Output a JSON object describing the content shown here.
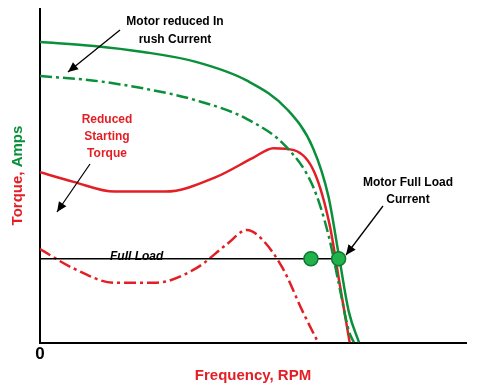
{
  "chart_data": {
    "type": "line",
    "x_label": "Frequency, RPM",
    "y_label": "Torque, Amps",
    "xlim": [
      0,
      100
    ],
    "ylim": [
      0,
      100
    ],
    "xticks": [
      0
    ],
    "yticks": [],
    "tick_labels": "x",
    "grid": false,
    "series": [
      {
        "color": "#22b14c",
        "marker": "circle",
        "line_style": "none",
        "x": [
          63.6,
          70.1
        ],
        "values": [
          25.1,
          25.1
        ]
      },
      {
        "color": "#000000",
        "marker": "none",
        "line_style": "solid",
        "x": [
          0,
          70.1
        ],
        "values": [
          25.1,
          25.1
        ]
      },
      {
        "color": "#0a8f3a",
        "marker": "none",
        "line_style": "solid",
        "x": [
          0,
          12.7,
          24.2,
          36.4,
          48.6,
          58.1,
          64.1,
          67.7,
          70.1,
          72.5,
          74.9
        ],
        "values": [
          90,
          88.8,
          87.0,
          84.1,
          78.4,
          69.7,
          58.2,
          43.8,
          26.5,
          9.2,
          0
        ]
      },
      {
        "color": "#0a8f3a",
        "marker": "none",
        "line_style": "dashdot",
        "x": [
          0,
          12.7,
          24.2,
          36.4,
          48.6,
          58.1,
          64.1,
          67.7,
          70.1,
          72.5,
          73.7
        ],
        "values": [
          79.8,
          78.4,
          76.1,
          72.6,
          66.9,
          58.2,
          46.7,
          32.3,
          17.9,
          3.5,
          0
        ]
      },
      {
        "color": "#e31e24",
        "marker": "none",
        "line_style": "solid",
        "x": [
          0,
          7.9,
          17.5,
          29.4,
          41.4,
          50.0,
          54.8,
          59.6,
          64.4,
          68.0,
          70.3,
          72.7
        ],
        "values": [
          51.0,
          48.1,
          45.2,
          45.2,
          49.6,
          55.3,
          58.2,
          57.6,
          51.0,
          35.2,
          17.9,
          0
        ]
      },
      {
        "color": "#e31e24",
        "marker": "none",
        "line_style": "dashdot",
        "x": [
          0,
          7.9,
          17.5,
          27.0,
          36.6,
          43.8,
          48.6,
          52.2,
          57.0,
          61.7,
          65.3
        ],
        "values": [
          28.0,
          22.2,
          17.9,
          17.9,
          22.2,
          29.4,
          33.7,
          30.8,
          22.2,
          9.2,
          0
        ]
      }
    ],
    "annotations": [
      "Motor reduced In\nrush Current",
      "Reduced\nStarting\nTorque",
      "Full Load",
      "Motor Full Load\nCurrent"
    ]
  }
}
